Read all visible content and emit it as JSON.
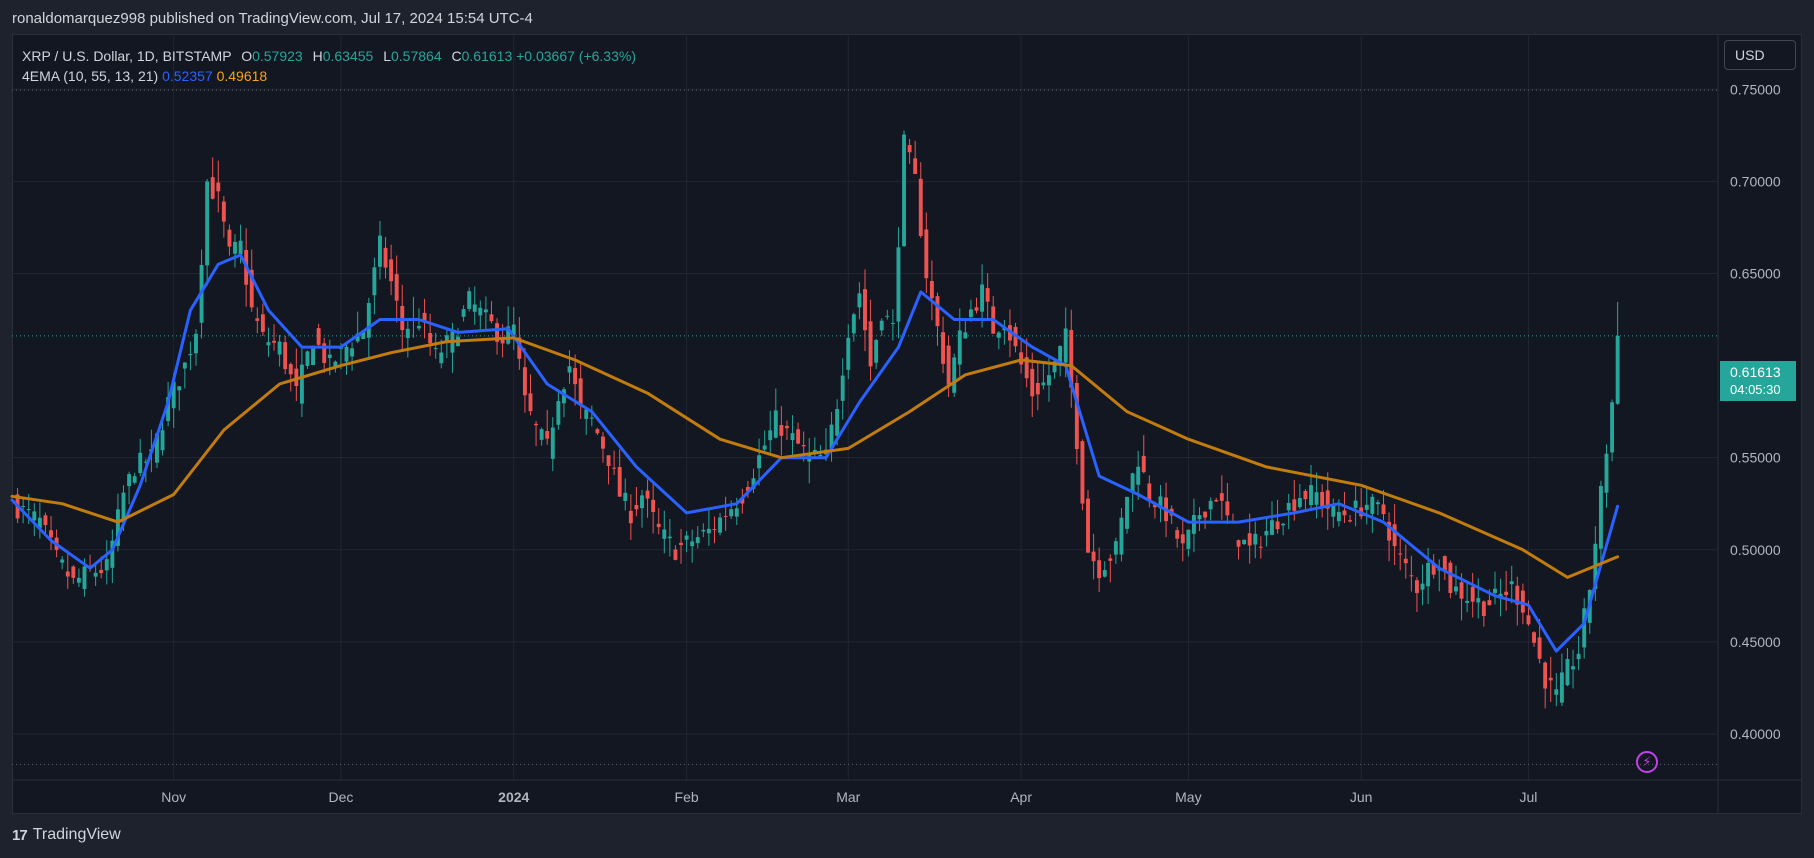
{
  "header": {
    "banner": "ronaldomarquez998 published on TradingView.com, Jul 17, 2024 15:54 UTC-4"
  },
  "legend": {
    "symbol": "XRP / U.S. Dollar, 1D, BITSTAMP",
    "o_label": "O",
    "o_value": "0.57923",
    "h_label": "H",
    "h_value": "0.63455",
    "l_label": "L",
    "l_value": "0.57864",
    "c_label": "C",
    "c_value": "0.61613",
    "change": "+0.03667 (+6.33%)",
    "indicator": "4EMA (10, 55, 13, 21)",
    "ema_fast_value": "0.52357",
    "ema_slow_value": "0.49618"
  },
  "toolbar": {
    "currency_label": "USD"
  },
  "price_tag": {
    "price": "0.61613",
    "countdown": "04:05:30"
  },
  "footer": {
    "brand_logo": "17",
    "brand_name": "TradingView"
  },
  "colors": {
    "up": "#26a69a",
    "down": "#ef5350",
    "ema_fast": "#2962ff",
    "ema_slow": "#c27c0e",
    "grid": "#232632",
    "axis_text": "#b2b5be",
    "alert_icon": "#c042e8"
  },
  "icons": {
    "alert": "lightning-bolt-icon"
  },
  "chart_data": {
    "type": "candlestick",
    "title": "",
    "y_ticks": [
      "0.75000",
      "0.70000",
      "0.65000",
      "0.55000",
      "0.50000",
      "0.45000",
      "0.40000"
    ],
    "ylim": [
      0.375,
      0.78
    ],
    "x_ticks": [
      {
        "label": "Nov",
        "date": "2023-11-01"
      },
      {
        "label": "Dec",
        "date": "2023-12-01"
      },
      {
        "label": "2024",
        "date": "2024-01-01"
      },
      {
        "label": "Feb",
        "date": "2024-02-01"
      },
      {
        "label": "Mar",
        "date": "2024-03-01"
      },
      {
        "label": "Apr",
        "date": "2024-04-01"
      },
      {
        "label": "May",
        "date": "2024-05-01"
      },
      {
        "label": "Jun",
        "date": "2024-06-01"
      },
      {
        "label": "Jul",
        "date": "2024-07-01"
      }
    ],
    "xlim": [
      "2023-10-03",
      "2024-08-04"
    ],
    "reference_lines": [
      0.7495,
      0.3835
    ],
    "last_price": 0.61613,
    "close_path": [
      [
        "2023-10-03",
        0.525
      ],
      [
        "2023-10-08",
        0.515
      ],
      [
        "2023-10-11",
        0.495
      ],
      [
        "2023-10-14",
        0.482
      ],
      [
        "2023-10-17",
        0.488
      ],
      [
        "2023-10-20",
        0.49
      ],
      [
        "2023-10-23",
        0.53
      ],
      [
        "2023-10-25",
        0.545
      ],
      [
        "2023-10-28",
        0.55
      ],
      [
        "2023-10-31",
        0.58
      ],
      [
        "2023-11-03",
        0.6
      ],
      [
        "2023-11-05",
        0.62
      ],
      [
        "2023-11-07",
        0.7
      ],
      [
        "2023-11-09",
        0.69
      ],
      [
        "2023-11-11",
        0.66
      ],
      [
        "2023-11-13",
        0.665
      ],
      [
        "2023-11-15",
        0.63
      ],
      [
        "2023-11-17",
        0.615
      ],
      [
        "2023-11-20",
        0.61
      ],
      [
        "2023-11-23",
        0.585
      ],
      [
        "2023-11-26",
        0.615
      ],
      [
        "2023-11-29",
        0.6
      ],
      [
        "2023-12-02",
        0.61
      ],
      [
        "2023-12-05",
        0.62
      ],
      [
        "2023-12-08",
        0.665
      ],
      [
        "2023-12-10",
        0.645
      ],
      [
        "2023-12-12",
        0.62
      ],
      [
        "2023-12-15",
        0.625
      ],
      [
        "2023-12-18",
        0.605
      ],
      [
        "2023-12-21",
        0.615
      ],
      [
        "2023-12-24",
        0.635
      ],
      [
        "2023-12-27",
        0.625
      ],
      [
        "2023-12-30",
        0.615
      ],
      [
        "2024-01-01",
        0.62
      ],
      [
        "2024-01-03",
        0.58
      ],
      [
        "2024-01-05",
        0.565
      ],
      [
        "2024-01-07",
        0.555
      ],
      [
        "2024-01-09",
        0.585
      ],
      [
        "2024-01-11",
        0.6
      ],
      [
        "2024-01-13",
        0.575
      ],
      [
        "2024-01-15",
        0.57
      ],
      [
        "2024-01-18",
        0.55
      ],
      [
        "2024-01-20",
        0.53
      ],
      [
        "2024-01-22",
        0.52
      ],
      [
        "2024-01-24",
        0.53
      ],
      [
        "2024-01-27",
        0.51
      ],
      [
        "2024-01-30",
        0.5
      ],
      [
        "2024-02-02",
        0.505
      ],
      [
        "2024-02-05",
        0.51
      ],
      [
        "2024-02-08",
        0.52
      ],
      [
        "2024-02-11",
        0.53
      ],
      [
        "2024-02-14",
        0.55
      ],
      [
        "2024-02-17",
        0.57
      ],
      [
        "2024-02-20",
        0.56
      ],
      [
        "2024-02-23",
        0.55
      ],
      [
        "2024-02-26",
        0.55
      ],
      [
        "2024-02-28",
        0.58
      ],
      [
        "2024-03-01",
        0.62
      ],
      [
        "2024-03-03",
        0.64
      ],
      [
        "2024-03-05",
        0.6
      ],
      [
        "2024-03-07",
        0.63
      ],
      [
        "2024-03-09",
        0.62
      ],
      [
        "2024-03-11",
        0.72
      ],
      [
        "2024-03-13",
        0.7
      ],
      [
        "2024-03-15",
        0.65
      ],
      [
        "2024-03-17",
        0.62
      ],
      [
        "2024-03-19",
        0.59
      ],
      [
        "2024-03-21",
        0.615
      ],
      [
        "2024-03-23",
        0.63
      ],
      [
        "2024-03-25",
        0.64
      ],
      [
        "2024-03-27",
        0.62
      ],
      [
        "2024-03-29",
        0.625
      ],
      [
        "2024-04-01",
        0.6
      ],
      [
        "2024-04-03",
        0.585
      ],
      [
        "2024-04-05",
        0.59
      ],
      [
        "2024-04-07",
        0.6
      ],
      [
        "2024-04-09",
        0.615
      ],
      [
        "2024-04-11",
        0.56
      ],
      [
        "2024-04-13",
        0.5
      ],
      [
        "2024-04-15",
        0.49
      ],
      [
        "2024-04-18",
        0.5
      ],
      [
        "2024-04-20",
        0.53
      ],
      [
        "2024-04-22",
        0.55
      ],
      [
        "2024-04-24",
        0.53
      ],
      [
        "2024-04-27",
        0.52
      ],
      [
        "2024-04-30",
        0.5
      ],
      [
        "2024-05-03",
        0.52
      ],
      [
        "2024-05-06",
        0.53
      ],
      [
        "2024-05-09",
        0.51
      ],
      [
        "2024-05-12",
        0.5
      ],
      [
        "2024-05-15",
        0.51
      ],
      [
        "2024-05-18",
        0.52
      ],
      [
        "2024-05-21",
        0.53
      ],
      [
        "2024-05-24",
        0.53
      ],
      [
        "2024-05-27",
        0.52
      ],
      [
        "2024-05-30",
        0.52
      ],
      [
        "2024-06-02",
        0.525
      ],
      [
        "2024-06-05",
        0.52
      ],
      [
        "2024-06-07",
        0.5
      ],
      [
        "2024-06-09",
        0.49
      ],
      [
        "2024-06-11",
        0.48
      ],
      [
        "2024-06-13",
        0.49
      ],
      [
        "2024-06-15",
        0.495
      ],
      [
        "2024-06-17",
        0.48
      ],
      [
        "2024-06-20",
        0.475
      ],
      [
        "2024-06-23",
        0.47
      ],
      [
        "2024-06-26",
        0.475
      ],
      [
        "2024-06-28",
        0.48
      ],
      [
        "2024-06-30",
        0.47
      ],
      [
        "2024-07-02",
        0.45
      ],
      [
        "2024-07-04",
        0.43
      ],
      [
        "2024-07-06",
        0.42
      ],
      [
        "2024-07-08",
        0.435
      ],
      [
        "2024-07-10",
        0.445
      ],
      [
        "2024-07-12",
        0.48
      ],
      [
        "2024-07-14",
        0.53
      ],
      [
        "2024-07-16",
        0.58
      ],
      [
        "2024-07-17",
        0.616
      ]
    ],
    "series": [
      {
        "name": "",
        "values": [
          [
            "2023-10-03",
            0.527
          ],
          [
            "2023-10-10",
            0.505
          ],
          [
            "2023-10-17",
            0.49
          ],
          [
            "2023-10-21",
            0.5
          ],
          [
            "2023-10-26",
            0.535
          ],
          [
            "2023-10-31",
            0.58
          ],
          [
            "2023-11-04",
            0.63
          ],
          [
            "2023-11-09",
            0.655
          ],
          [
            "2023-11-13",
            0.66
          ],
          [
            "2023-11-18",
            0.63
          ],
          [
            "2023-11-24",
            0.61
          ],
          [
            "2023-12-01",
            0.61
          ],
          [
            "2023-12-08",
            0.625
          ],
          [
            "2023-12-15",
            0.625
          ],
          [
            "2023-12-22",
            0.618
          ],
          [
            "2023-12-31",
            0.62
          ],
          [
            "2024-01-07",
            0.59
          ],
          [
            "2024-01-15",
            0.575
          ],
          [
            "2024-01-23",
            0.545
          ],
          [
            "2024-02-01",
            0.52
          ],
          [
            "2024-02-10",
            0.525
          ],
          [
            "2024-02-18",
            0.55
          ],
          [
            "2024-02-26",
            0.55
          ],
          [
            "2024-03-03",
            0.58
          ],
          [
            "2024-03-10",
            0.61
          ],
          [
            "2024-03-14",
            0.64
          ],
          [
            "2024-03-20",
            0.625
          ],
          [
            "2024-03-27",
            0.625
          ],
          [
            "2024-04-03",
            0.61
          ],
          [
            "2024-04-09",
            0.6
          ],
          [
            "2024-04-15",
            0.54
          ],
          [
            "2024-04-22",
            0.53
          ],
          [
            "2024-05-01",
            0.515
          ],
          [
            "2024-05-10",
            0.515
          ],
          [
            "2024-05-20",
            0.52
          ],
          [
            "2024-05-28",
            0.525
          ],
          [
            "2024-06-05",
            0.515
          ],
          [
            "2024-06-15",
            0.49
          ],
          [
            "2024-06-25",
            0.475
          ],
          [
            "2024-07-01",
            0.47
          ],
          [
            "2024-07-06",
            0.445
          ],
          [
            "2024-07-11",
            0.46
          ],
          [
            "2024-07-17",
            0.52357
          ]
        ]
      },
      {
        "name": "",
        "values": [
          [
            "2023-10-03",
            0.529
          ],
          [
            "2023-10-12",
            0.525
          ],
          [
            "2023-10-22",
            0.515
          ],
          [
            "2023-11-01",
            0.53
          ],
          [
            "2023-11-10",
            0.565
          ],
          [
            "2023-11-20",
            0.59
          ],
          [
            "2023-12-01",
            0.6
          ],
          [
            "2023-12-10",
            0.607
          ],
          [
            "2023-12-20",
            0.613
          ],
          [
            "2024-01-01",
            0.615
          ],
          [
            "2024-01-12",
            0.603
          ],
          [
            "2024-01-25",
            0.585
          ],
          [
            "2024-02-07",
            0.56
          ],
          [
            "2024-02-18",
            0.55
          ],
          [
            "2024-03-01",
            0.555
          ],
          [
            "2024-03-12",
            0.575
          ],
          [
            "2024-03-22",
            0.595
          ],
          [
            "2024-04-01",
            0.603
          ],
          [
            "2024-04-10",
            0.6
          ],
          [
            "2024-04-20",
            0.575
          ],
          [
            "2024-05-01",
            0.56
          ],
          [
            "2024-05-15",
            0.545
          ],
          [
            "2024-06-01",
            0.535
          ],
          [
            "2024-06-15",
            0.52
          ],
          [
            "2024-06-30",
            0.5
          ],
          [
            "2024-07-08",
            0.485
          ],
          [
            "2024-07-17",
            0.49618
          ]
        ]
      }
    ]
  }
}
